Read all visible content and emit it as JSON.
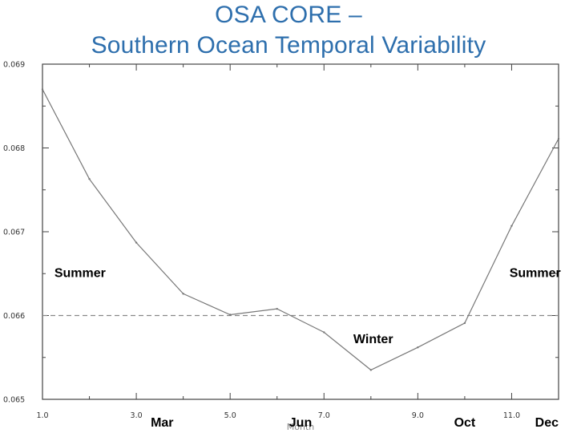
{
  "title": {
    "line1": "OSA CORE –",
    "line2": "Southern Ocean Temporal Variability"
  },
  "colors": {
    "title": "#2e6fad",
    "series": "#777777",
    "reference_line": "#888888",
    "axis": "#444444"
  },
  "chart_data": {
    "type": "line",
    "title": "",
    "xlabel": "Month",
    "ylabel": "",
    "xlim": [
      1,
      12
    ],
    "ylim": [
      0.065,
      0.069
    ],
    "grid": false,
    "x_ticks": [
      1,
      3,
      5,
      7,
      9,
      11
    ],
    "x_tick_labels": [
      "1.0",
      "3.0",
      "5.0",
      "7.0",
      "9.0",
      "11.0"
    ],
    "y_ticks": [
      0.065,
      0.066,
      0.067,
      0.068,
      0.069
    ],
    "y_tick_labels": [
      "0.065",
      "0.066",
      "0.067",
      "0.068",
      "0.069"
    ],
    "series": [
      {
        "x": [
          1,
          2,
          3,
          4,
          5,
          6,
          7,
          8,
          9,
          10,
          11,
          12
        ],
        "values": [
          0.0687,
          0.06763,
          0.06687,
          0.06626,
          0.06601,
          0.06608,
          0.0658,
          0.06535,
          0.06562,
          0.06591,
          0.06707,
          0.06811
        ]
      }
    ],
    "reference_lines": [
      {
        "axis": "y",
        "value": 0.066,
        "style": "dashed"
      }
    ],
    "annotations": [
      {
        "text": "Summer",
        "x": 1.8,
        "y": 0.06646
      },
      {
        "text": "Summer",
        "x": 11.5,
        "y": 0.06646
      },
      {
        "text": "Winter",
        "x": 8.05,
        "y": 0.06567
      }
    ],
    "month_labels": [
      {
        "text": "Mar",
        "x": 3.55
      },
      {
        "text": "Jun",
        "x": 6.5
      },
      {
        "text": "Oct",
        "x": 10.0
      },
      {
        "text": "Dec",
        "x": 11.75
      }
    ]
  }
}
